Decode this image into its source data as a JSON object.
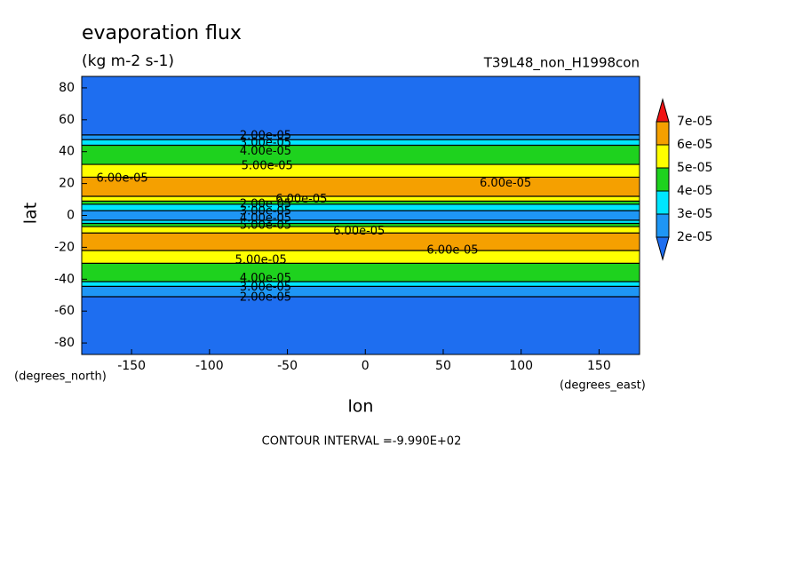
{
  "chart_data": {
    "type": "contour",
    "title": "evaporation flux",
    "subtitle": "(kg m-2 s-1)",
    "run_label": "T39L48_non_H1998con",
    "xlabel": "lon",
    "ylabel": "lat",
    "xunits": "(degrees_east)",
    "yunits": "(degrees_north)",
    "footer": "CONTOUR INTERVAL =-9.990E+02",
    "xlim": [
      -182,
      176
    ],
    "ylim": [
      -87.2,
      87.2
    ],
    "xticks": [
      -150,
      -100,
      -50,
      0,
      50,
      100,
      150
    ],
    "yticks": [
      -80,
      -60,
      -40,
      -20,
      0,
      20,
      40,
      60,
      80
    ],
    "y": [
      87,
      52,
      49,
      46,
      42,
      38,
      34,
      30,
      26,
      22,
      18,
      14,
      10,
      8,
      6,
      4,
      2,
      0,
      -2,
      -4,
      -6,
      -8,
      -10,
      -12,
      -16,
      -20,
      -24,
      -28,
      -32,
      -36,
      -40,
      -43,
      -46,
      -50,
      -52,
      -87
    ],
    "values": [
      1.5e-05,
      1.9e-05,
      2.5e-05,
      3.5e-05,
      4.3e-05,
      4.6e-05,
      4.9e-05,
      5.3e-05,
      5.7e-05,
      6.2e-05,
      6.4e-05,
      6.2e-05,
      5.5e-05,
      4.5e-05,
      3.5e-05,
      3e-05,
      2.8e-05,
      2.8e-05,
      2.9e-05,
      3.5e-05,
      4.5e-05,
      5.4e-05,
      5.9e-05,
      6.2e-05,
      6.4e-05,
      6.3e-05,
      5.8e-05,
      5.4e-05,
      4.8e-05,
      4.5e-05,
      4e-05,
      3.4e-05,
      2.6e-05,
      2.1e-05,
      1.9e-05,
      1.5e-05
    ],
    "levels": [
      {
        "value": 2e-05,
        "label": "2e-05"
      },
      {
        "value": 3e-05,
        "label": "3e-05"
      },
      {
        "value": 4e-05,
        "label": "4e-05"
      },
      {
        "value": 5e-05,
        "label": "5e-05"
      },
      {
        "value": 6e-05,
        "label": "6e-05"
      },
      {
        "value": 7e-05,
        "label": "7e-05"
      }
    ],
    "colors": [
      "#1e6ef0",
      "#1e96f5",
      "#00e6ff",
      "#1ed21e",
      "#ffff00",
      "#f5a000",
      "#f01414"
    ],
    "contour_labels": [
      {
        "value": 2e-05,
        "label": "2.00e-05",
        "x": -64,
        "y": 50
      },
      {
        "value": 3e-05,
        "label": "3.00e-05",
        "x": -64,
        "y": 45.5
      },
      {
        "value": 4e-05,
        "label": "4.00e-05",
        "x": -64,
        "y": 40
      },
      {
        "value": 5e-05,
        "label": "5.00e-05",
        "x": -63,
        "y": 31
      },
      {
        "value": 6e-05,
        "label": "6.00e-05",
        "x": -156,
        "y": 23
      },
      {
        "value": 6e-05,
        "label": "6.00e-05",
        "x": -41,
        "y": 10
      },
      {
        "value": 6e-05,
        "label": "6.00e-05",
        "x": 90,
        "y": 20
      },
      {
        "value": 2e-05,
        "label": "2.00e-05",
        "x": -64,
        "y": 7
      },
      {
        "value": 3e-05,
        "label": "3.00e-05",
        "x": -64,
        "y": 2.5
      },
      {
        "value": 4e-05,
        "label": "4.00e-05",
        "x": -64,
        "y": -2
      },
      {
        "value": 5e-05,
        "label": "5.00e-05",
        "x": -64,
        "y": -6.5
      },
      {
        "value": 6e-05,
        "label": "6.00e-05",
        "x": -4,
        "y": -10
      },
      {
        "value": 6e-05,
        "label": "6.00e-05",
        "x": 56,
        "y": -22
      },
      {
        "value": 5e-05,
        "label": "5.00e-05",
        "x": -67,
        "y": -28
      },
      {
        "value": 4e-05,
        "label": "4.00e-05",
        "x": -64,
        "y": -39.5
      },
      {
        "value": 3e-05,
        "label": "3.00e-05",
        "x": -64,
        "y": -45
      },
      {
        "value": 2e-05,
        "label": "2.00e-05",
        "x": -64,
        "y": -51.5
      }
    ]
  }
}
